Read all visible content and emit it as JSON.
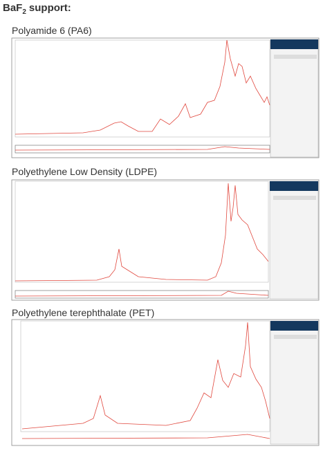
{
  "header": {
    "title": {
      "base": "BaF",
      "subscript": "2",
      "rest": "support:"
    }
  },
  "panels": [
    {
      "label": "Polyamide 6 (PA6)"
    },
    {
      "label": "Polyethylene Low Density (LDPE)"
    },
    {
      "label": "Polyethylene terephthalate (PET)"
    }
  ]
}
